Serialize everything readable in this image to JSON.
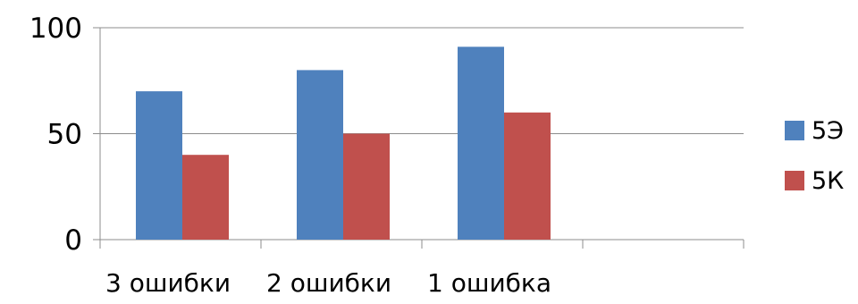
{
  "chart_data": {
    "type": "bar",
    "categories": [
      "3 ошибки",
      "2 ошибки",
      "1 ошибка",
      ""
    ],
    "series": [
      {
        "name": "5Э",
        "values": [
          70,
          80,
          91,
          null
        ],
        "color": "#4f81bd"
      },
      {
        "name": "5К",
        "values": [
          40,
          50,
          60,
          null
        ],
        "color": "#c0504d"
      }
    ],
    "ylim": [
      0,
      100
    ],
    "yticks": [
      0,
      50,
      100
    ],
    "grid": true,
    "legend_position": "right",
    "title": "",
    "xlabel": "",
    "ylabel": ""
  }
}
